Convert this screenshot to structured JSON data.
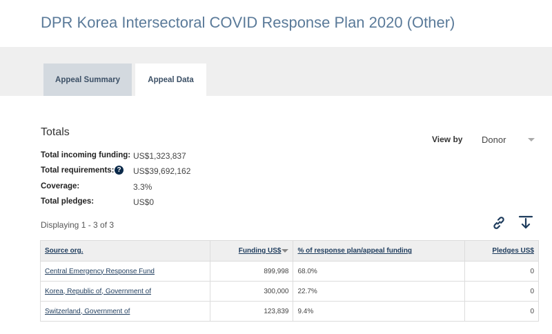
{
  "page_title": "DPR Korea Intersectoral COVID Response Plan 2020 (Other)",
  "tabs": [
    {
      "label": "Appeal Summary"
    },
    {
      "label": "Appeal Data"
    }
  ],
  "totals": {
    "title": "Totals",
    "incoming_label": "Total incoming funding:",
    "incoming_value": "US$1,323,837",
    "requirements_label": "Total requirements:",
    "requirements_value": "US$39,692,162",
    "coverage_label": "Coverage:",
    "coverage_value": "3.3%",
    "pledges_label": "Total pledges:",
    "pledges_value": "US$0"
  },
  "view_by": {
    "label": "View by",
    "selected": "Donor"
  },
  "displaying": "Displaying 1 - 3 of 3",
  "icons": {
    "help": "question-circle-icon",
    "link": "link-icon",
    "download": "download-icon"
  },
  "table": {
    "headers": [
      "Source org.",
      "Funding US$",
      "% of response plan/appeal funding",
      "Pledges US$"
    ],
    "rows": [
      {
        "source": "Central Emergency Response Fund",
        "funding": "899,998",
        "percent": "68.0%",
        "pledges": "0"
      },
      {
        "source": "Korea, Republic of, Government of",
        "funding": "300,000",
        "percent": "22.7%",
        "pledges": "0"
      },
      {
        "source": "Switzerland, Government of",
        "funding": "123,839",
        "percent": "9.4%",
        "pledges": "0"
      }
    ]
  },
  "colors": {
    "title": "#5a7a99",
    "accent_navy": "#1d3b5c",
    "tab_band": "#efefef",
    "tab_inactive": "#d3d9df"
  }
}
